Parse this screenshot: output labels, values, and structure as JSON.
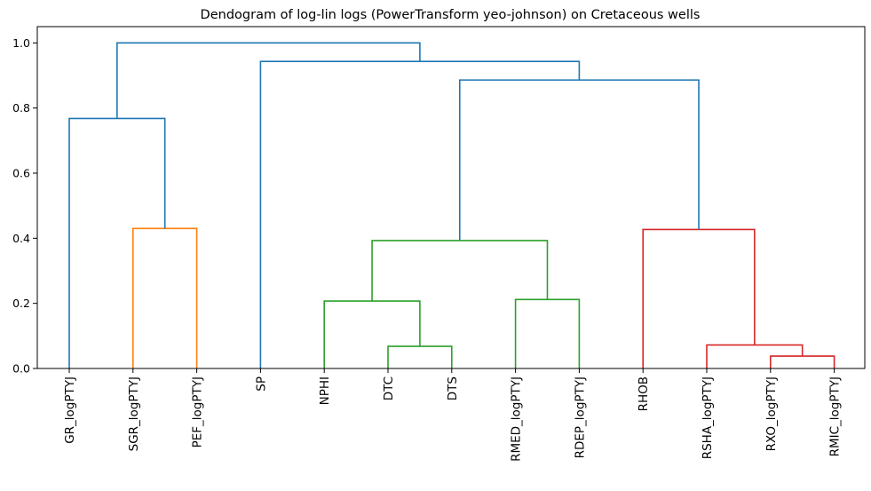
{
  "chart_data": {
    "type": "dendrogram",
    "title": "Dendogram of log-lin logs (PowerTransform yeo-johnson) on Cretaceous wells",
    "xlabel": "",
    "ylabel": "",
    "ylim": [
      0,
      1.05
    ],
    "yticks": [
      0.0,
      0.2,
      0.4,
      0.6,
      0.8,
      1.0
    ],
    "ytick_labels": [
      "0.0",
      "0.2",
      "0.4",
      "0.6",
      "0.8",
      "1.0"
    ],
    "grid": false,
    "leaves": [
      "GR_logPTYJ",
      "SGR_logPTYJ",
      "PEF_logPTYJ",
      "SP",
      "NPHI",
      "DTC",
      "DTS",
      "RMED_logPTYJ",
      "RDEP_logPTYJ",
      "RHOB",
      "RSHA_logPTYJ",
      "RXO_logPTYJ",
      "RMIC_logPTYJ"
    ],
    "colors": {
      "orange": "#ff7f0e",
      "green": "#2ca02c",
      "red": "#d62728",
      "blue": "#1f77b4"
    },
    "links": [
      {
        "id": "c1",
        "left": "SGR_logPTYJ",
        "right": "PEF_logPTYJ",
        "height": 0.43,
        "color": "orange"
      },
      {
        "id": "c2",
        "left": "DTC",
        "right": "DTS",
        "height": 0.068,
        "color": "green"
      },
      {
        "id": "c3",
        "left": "NPHI",
        "right": "c2",
        "height": 0.207,
        "color": "green"
      },
      {
        "id": "c4",
        "left": "RMED_logPTYJ",
        "right": "RDEP_logPTYJ",
        "height": 0.212,
        "color": "green"
      },
      {
        "id": "c5",
        "left": "c3",
        "right": "c4",
        "height": 0.393,
        "color": "green"
      },
      {
        "id": "c6",
        "left": "RXO_logPTYJ",
        "right": "RMIC_logPTYJ",
        "height": 0.038,
        "color": "red"
      },
      {
        "id": "c7",
        "left": "RSHA_logPTYJ",
        "right": "c6",
        "height": 0.072,
        "color": "red"
      },
      {
        "id": "c8",
        "left": "RHOB",
        "right": "c7",
        "height": 0.427,
        "color": "red"
      },
      {
        "id": "c9",
        "left": "GR_logPTYJ",
        "right": "c1",
        "height": 0.768,
        "color": "blue"
      },
      {
        "id": "c10",
        "left": "c5",
        "right": "c8",
        "height": 0.886,
        "color": "blue"
      },
      {
        "id": "c11",
        "left": "SP",
        "right": "c10",
        "height": 0.943,
        "color": "blue"
      },
      {
        "id": "c12",
        "left": "c9",
        "right": "c11",
        "height": 1.0,
        "color": "blue"
      }
    ]
  }
}
